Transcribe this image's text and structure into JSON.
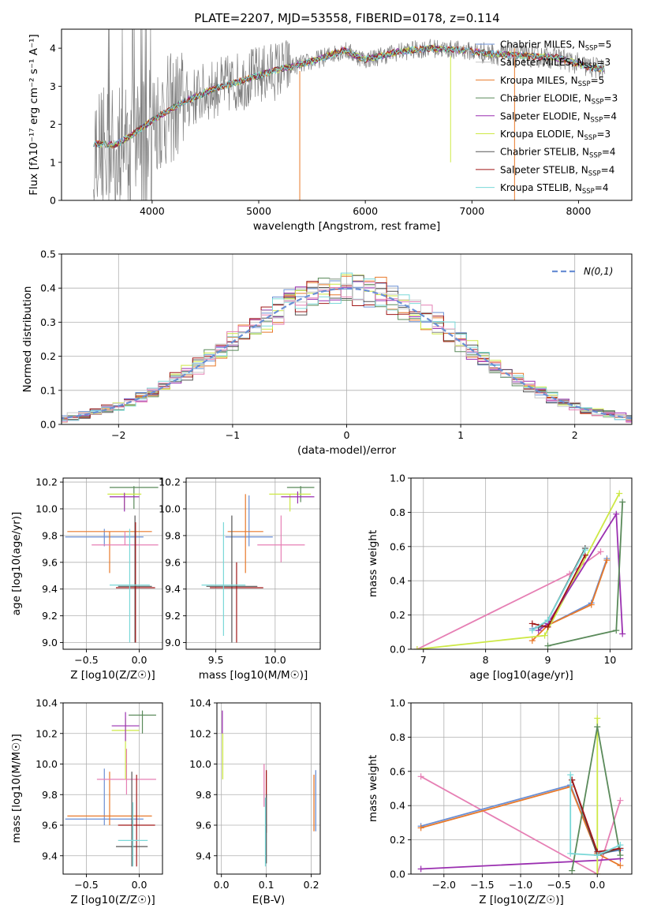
{
  "chart_data": [
    {
      "id": "spectrum",
      "type": "line",
      "title": "PLATE=2207, MJD=53558, FIBERID=0178, z=0.114",
      "xlabel": "wavelength [Angstrom, rest frame]",
      "ylabel": "Flux [fλ10⁻¹⁷ erg cm⁻² s⁻¹ A⁻¹]",
      "xlim": [
        3150,
        8500
      ],
      "ylim": [
        0,
        4.5
      ],
      "xticks": [
        4000,
        5000,
        6000,
        7000,
        8000
      ],
      "yticks": [
        0,
        1,
        2,
        3,
        4
      ],
      "continuum_x": [
        3450,
        3650,
        3800,
        4000,
        4300,
        4600,
        4900,
        5200,
        5500,
        5800,
        6000,
        6300,
        6600,
        6900,
        7200,
        7500,
        7800,
        8100,
        8250
      ],
      "continuum_y": [
        1.5,
        1.45,
        1.7,
        2.1,
        2.6,
        2.95,
        3.2,
        3.45,
        3.65,
        3.95,
        3.7,
        3.9,
        4.0,
        3.95,
        3.85,
        3.8,
        3.75,
        3.5,
        3.45
      ],
      "data_noise": "observed spectrum (grey) with strong sky residuals",
      "legend": [
        {
          "name": "Chabrier MILES, N_SSP=5",
          "color": "#6a8fd4"
        },
        {
          "name": "Salpeter MILES, N_SSP=3",
          "color": "#c8c8c8"
        },
        {
          "name": "Kroupa MILES, N_SSP=5",
          "color": "#e8792a"
        },
        {
          "name": "Chabrier ELODIE, N_SSP=3",
          "color": "#5a8a5a"
        },
        {
          "name": "Salpeter ELODIE, N_SSP=4",
          "color": "#9a2fb0"
        },
        {
          "name": "Kroupa ELODIE, N_SSP=3",
          "color": "#cde845"
        },
        {
          "name": "Chabrier STELIB, N_SSP=4",
          "color": "#555555"
        },
        {
          "name": "Salpeter STELIB, N_SSP=4",
          "color": "#a01818"
        },
        {
          "name": "Kroupa STELIB, N_SSP=4",
          "color": "#7ad8d8"
        }
      ],
      "legend_labels": [
        {
          "pre": "Chabrier MILES, N",
          "sub": "SSP",
          "post": "=5"
        },
        {
          "pre": "Salpeter MILES, N",
          "sub": "SSP",
          "post": "=3"
        },
        {
          "pre": "Kroupa MILES, N",
          "sub": "SSP",
          "post": "=5"
        },
        {
          "pre": "Chabrier ELODIE, N",
          "sub": "SSP",
          "post": "=3"
        },
        {
          "pre": "Salpeter ELODIE, N",
          "sub": "SSP",
          "post": "=4"
        },
        {
          "pre": "Kroupa ELODIE, N",
          "sub": "SSP",
          "post": "=3"
        },
        {
          "pre": "Chabrier STELIB, N",
          "sub": "SSP",
          "post": "=4"
        },
        {
          "pre": "Salpeter STELIB, N",
          "sub": "SSP",
          "post": "=4"
        },
        {
          "pre": "Kroupa STELIB, N",
          "sub": "SSP",
          "post": "=4"
        }
      ]
    },
    {
      "id": "residuals",
      "type": "line",
      "xlabel": "(data-model)/error",
      "ylabel": "Normed distribution",
      "xlim": [
        -2.5,
        2.5
      ],
      "ylim": [
        0,
        0.5
      ],
      "xticks": [
        -2,
        -1,
        0,
        1,
        2
      ],
      "xtick_labels": [
        "−2",
        "−1",
        "0",
        "1",
        "2"
      ],
      "yticks": [
        0.0,
        0.1,
        0.2,
        0.3,
        0.4,
        0.5
      ],
      "ytick_labels": [
        "0.0",
        "0.1",
        "0.2",
        "0.3",
        "0.4",
        "0.5"
      ],
      "grid": true,
      "legend": [
        {
          "name": "N(0,1)",
          "style": "dashed",
          "color": "#6a8fd4"
        }
      ],
      "reference_curve": "gaussian mean 0 sigma 1"
    },
    {
      "id": "age_vs_Z",
      "type": "scatter",
      "xlabel": "Z [log10(Z/Z☉)]",
      "ylabel": "age  [log10(age/yr)]",
      "xlim": [
        -0.72,
        0.22
      ],
      "ylim": [
        8.95,
        10.23
      ],
      "xticks": [
        -0.5,
        0.0
      ],
      "xtick_labels": [
        "−0.5",
        "0.0"
      ],
      "yticks": [
        9.0,
        9.2,
        9.4,
        9.6,
        9.8,
        10.0,
        10.2
      ],
      "ytick_labels": [
        "9.0",
        "9.2",
        "9.4",
        "9.6",
        "9.8",
        "10.0",
        "10.2"
      ],
      "grid": true
    },
    {
      "id": "age_vs_mass",
      "type": "scatter",
      "xlabel": "mass [log10(M/M☉)]",
      "xlim": [
        9.25,
        10.38
      ],
      "ylim": [
        8.95,
        10.23
      ],
      "xticks": [
        9.5,
        10.0
      ],
      "xtick_labels": [
        "9.5",
        "10.0"
      ],
      "yticks": [
        9.0,
        9.2,
        9.4,
        9.6,
        9.8,
        10.0,
        10.2
      ],
      "ytick_labels": [
        "9.0",
        "9.2",
        "9.4",
        "9.6",
        "9.8",
        "10.0",
        "10.2"
      ],
      "grid": true
    },
    {
      "id": "weight_vs_age",
      "type": "line",
      "xlabel": "age  [log10(age/yr)]",
      "ylabel": "mass weight",
      "xlim": [
        6.8,
        10.35
      ],
      "ylim": [
        0,
        1.0
      ],
      "xticks": [
        7,
        8,
        9,
        10
      ],
      "yticks": [
        0.0,
        0.2,
        0.4,
        0.6,
        0.8,
        1.0
      ],
      "ytick_labels": [
        "0.0",
        "0.2",
        "0.4",
        "0.6",
        "0.8",
        "1.0"
      ],
      "grid": true
    },
    {
      "id": "mass_vs_Z",
      "type": "scatter",
      "xlabel": "Z [log10(Z/Z☉)]",
      "ylabel": "mass [log10(M/M☉)]",
      "xlim": [
        -0.72,
        0.22
      ],
      "ylim": [
        9.28,
        10.4
      ],
      "xticks": [
        -0.5,
        0.0
      ],
      "xtick_labels": [
        "−0.5",
        "0.0"
      ],
      "yticks": [
        9.4,
        9.6,
        9.8,
        10.0,
        10.2,
        10.4
      ],
      "ytick_labels": [
        "9.4",
        "9.6",
        "9.8",
        "10.0",
        "10.2",
        "10.4"
      ],
      "grid": true
    },
    {
      "id": "mass_vs_EBV",
      "type": "scatter",
      "xlabel": "E(B-V)",
      "xlim": [
        -0.01,
        0.22
      ],
      "ylim": [
        9.28,
        10.4
      ],
      "xticks": [
        0.0,
        0.1,
        0.2
      ],
      "xtick_labels": [
        "0.0",
        "0.1",
        "0.2"
      ],
      "yticks": [
        9.4,
        9.6,
        9.8,
        10.0,
        10.2,
        10.4
      ],
      "ytick_labels": [
        "9.4",
        "9.6",
        "9.8",
        "10.0",
        "10.2",
        "10.4"
      ],
      "grid": true
    },
    {
      "id": "weight_vs_Z",
      "type": "line",
      "xlabel": "Z [log10(Z/Z☉)]",
      "ylabel": "mass weight",
      "xlim": [
        -2.43,
        0.45
      ],
      "ylim": [
        0,
        1.0
      ],
      "xticks": [
        -2.0,
        -1.5,
        -1.0,
        -0.5,
        0.0
      ],
      "xtick_labels": [
        "−2.0",
        "−1.5",
        "−1.0",
        "−0.5",
        "0.0"
      ],
      "yticks": [
        0.0,
        0.2,
        0.4,
        0.6,
        0.8,
        1.0
      ],
      "ytick_labels": [
        "0.0",
        "0.2",
        "0.4",
        "0.6",
        "0.8",
        "1.0"
      ],
      "grid": true
    }
  ],
  "colors": [
    "#6a8fd4",
    "#c8c8c8",
    "#e8792a",
    "#5a8a5a",
    "#9a2fb0",
    "#cde845",
    "#555555",
    "#a01818",
    "#7ad8d8",
    "#e67fb4"
  ],
  "series": {
    "ageZ": [
      {
        "c": "#6a8fd4",
        "x": -0.7,
        "x2": 0.04,
        "y": 9.79,
        "ylo": 9.72,
        "yhi": 9.85
      },
      {
        "c": "#e8792a",
        "x": -0.68,
        "x2": 0.12,
        "y": 9.83,
        "ylo": 9.52,
        "yhi": 9.83
      },
      {
        "c": "#e67fb4",
        "x": -0.45,
        "x2": 0.18,
        "y": 9.73,
        "ylo": 9.73,
        "yhi": 9.83
      },
      {
        "c": "#5a8a5a",
        "x": -0.28,
        "x2": 0.18,
        "y": 10.16,
        "ylo": 10.0,
        "yhi": 10.17
      },
      {
        "c": "#cde845",
        "x": -0.3,
        "x2": 0.02,
        "y": 10.11,
        "ylo": 10.0,
        "yhi": 10.11
      },
      {
        "c": "#9a2fb0",
        "x": -0.28,
        "x2": 0.0,
        "y": 10.09,
        "ylo": 9.98,
        "yhi": 10.12
      },
      {
        "c": "#555555",
        "x": -0.2,
        "x2": 0.12,
        "y": 9.42,
        "ylo": 9.0,
        "yhi": 9.95
      },
      {
        "c": "#a01818",
        "x": -0.22,
        "x2": 0.15,
        "y": 9.41,
        "ylo": 9.0,
        "yhi": 9.9
      },
      {
        "c": "#7ad8d8",
        "x": -0.28,
        "x2": 0.1,
        "y": 9.43,
        "ylo": 9.0,
        "yhi": 9.85
      }
    ],
    "ageM": [
      {
        "c": "#6a8fd4",
        "x": 9.58,
        "x2": 9.98,
        "y": 9.79,
        "ylo": 9.72,
        "yhi": 10.1
      },
      {
        "c": "#e8792a",
        "x": 9.6,
        "x2": 9.9,
        "y": 9.83,
        "ylo": 9.52,
        "yhi": 10.11
      },
      {
        "c": "#e67fb4",
        "x": 9.85,
        "x2": 10.25,
        "y": 9.73,
        "ylo": 9.6,
        "yhi": 9.95
      },
      {
        "c": "#5a8a5a",
        "x": 10.1,
        "x2": 10.33,
        "y": 10.16,
        "ylo": 10.05,
        "yhi": 10.17
      },
      {
        "c": "#cde845",
        "x": 9.95,
        "x2": 10.3,
        "y": 10.11,
        "ylo": 9.98,
        "yhi": 10.11
      },
      {
        "c": "#9a2fb0",
        "x": 10.05,
        "x2": 10.33,
        "y": 10.09,
        "ylo": 10.04,
        "yhi": 10.13
      },
      {
        "c": "#555555",
        "x": 9.42,
        "x2": 9.85,
        "y": 9.42,
        "ylo": 9.0,
        "yhi": 9.95
      },
      {
        "c": "#a01818",
        "x": 9.45,
        "x2": 9.9,
        "y": 9.41,
        "ylo": 9.0,
        "yhi": 9.6
      },
      {
        "c": "#7ad8d8",
        "x": 9.38,
        "x2": 9.75,
        "y": 9.43,
        "ylo": 9.05,
        "yhi": 9.9
      }
    ],
    "wAge": [
      {
        "c": "#e67fb4",
        "x": [
          6.9,
          9.35,
          9.85
        ],
        "y": [
          0.0,
          0.44,
          0.57
        ]
      },
      {
        "c": "#6a8fd4",
        "x": [
          8.75,
          9.0,
          9.7,
          9.95
        ],
        "y": [
          0.12,
          0.14,
          0.27,
          0.53
        ]
      },
      {
        "c": "#e8792a",
        "x": [
          8.75,
          9.0,
          9.7,
          9.95
        ],
        "y": [
          0.05,
          0.14,
          0.26,
          0.52
        ]
      },
      {
        "c": "#cde845",
        "x": [
          6.9,
          8.95,
          10.15
        ],
        "y": [
          0.0,
          0.08,
          0.91
        ]
      },
      {
        "c": "#9a2fb0",
        "x": [
          8.85,
          9.0,
          10.1,
          10.2
        ],
        "y": [
          0.11,
          0.15,
          0.79,
          0.09
        ]
      },
      {
        "c": "#5a8a5a",
        "x": [
          9.0,
          10.1,
          10.2
        ],
        "y": [
          0.02,
          0.11,
          0.86
        ]
      },
      {
        "c": "#555555",
        "x": [
          8.85,
          9.0,
          9.6
        ],
        "y": [
          0.13,
          0.17,
          0.59
        ]
      },
      {
        "c": "#a01818",
        "x": [
          8.75,
          9.0,
          9.6
        ],
        "y": [
          0.15,
          0.13,
          0.55
        ]
      },
      {
        "c": "#7ad8d8",
        "x": [
          8.75,
          9.0,
          9.6
        ],
        "y": [
          0.11,
          0.17,
          0.58
        ]
      }
    ],
    "massZ": [
      {
        "c": "#6a8fd4",
        "x": -0.7,
        "x2": 0.04,
        "y": 9.64,
        "ylo": 9.6,
        "yhi": 9.97
      },
      {
        "c": "#e8792a",
        "x": -0.68,
        "x2": 0.12,
        "y": 9.66,
        "ylo": 9.6,
        "yhi": 9.95
      },
      {
        "c": "#e67fb4",
        "x": -0.4,
        "x2": 0.16,
        "y": 9.9,
        "ylo": 9.8,
        "yhi": 10.1
      },
      {
        "c": "#5a8a5a",
        "x": -0.1,
        "x2": 0.16,
        "y": 10.32,
        "ylo": 10.2,
        "yhi": 10.35
      },
      {
        "c": "#cde845",
        "x": -0.26,
        "x2": 0.0,
        "y": 10.22,
        "ylo": 9.9,
        "yhi": 10.3
      },
      {
        "c": "#9a2fb0",
        "x": -0.26,
        "x2": 0.0,
        "y": 10.25,
        "ylo": 10.15,
        "yhi": 10.34
      },
      {
        "c": "#555555",
        "x": -0.22,
        "x2": 0.08,
        "y": 9.46,
        "ylo": 9.33,
        "yhi": 9.95
      },
      {
        "c": "#a01818",
        "x": -0.2,
        "x2": 0.15,
        "y": 9.6,
        "ylo": 9.33,
        "yhi": 9.93
      },
      {
        "c": "#7ad8d8",
        "x": -0.2,
        "x2": 0.08,
        "y": 9.5,
        "ylo": 9.33,
        "yhi": 9.75
      }
    ],
    "massE": [
      {
        "c": "#9a2fb0",
        "x": 0.002,
        "ylo": 10.2,
        "yhi": 10.35
      },
      {
        "c": "#cde845",
        "x": 0.003,
        "ylo": 9.9,
        "yhi": 10.2
      },
      {
        "c": "#e67fb4",
        "x": 0.095,
        "ylo": 9.72,
        "yhi": 10.0
      },
      {
        "c": "#a01818",
        "x": 0.1,
        "ylo": 9.55,
        "yhi": 9.96
      },
      {
        "c": "#555555",
        "x": 0.1,
        "ylo": 9.35,
        "yhi": 9.8
      },
      {
        "c": "#7ad8d8",
        "x": 0.098,
        "ylo": 9.33,
        "yhi": 9.78
      },
      {
        "c": "#6a8fd4",
        "x": 0.21,
        "ylo": 9.56,
        "yhi": 9.96
      },
      {
        "c": "#e8792a",
        "x": 0.206,
        "ylo": 9.56,
        "yhi": 9.93
      }
    ],
    "wZ": [
      {
        "c": "#e67fb4",
        "x": [
          -2.3,
          0.0,
          0.3
        ],
        "y": [
          0.57,
          0.0,
          0.43
        ]
      },
      {
        "c": "#6a8fd4",
        "x": [
          -2.3,
          -0.35,
          0.0,
          0.3
        ],
        "y": [
          0.28,
          0.52,
          0.12,
          0.14
        ]
      },
      {
        "c": "#e8792a",
        "x": [
          -2.3,
          -0.35,
          0.0,
          0.3
        ],
        "y": [
          0.27,
          0.51,
          0.12,
          0.05
        ]
      },
      {
        "c": "#9a2fb0",
        "x": [
          -2.3,
          0.0,
          0.3
        ],
        "y": [
          0.03,
          0.08,
          0.09
        ]
      },
      {
        "c": "#cde845",
        "x": [
          0.0,
          0.0
        ],
        "y": [
          0.0,
          0.91
        ]
      },
      {
        "c": "#5a8a5a",
        "x": [
          -0.33,
          0.0,
          0.3
        ],
        "y": [
          0.02,
          0.86,
          0.11
        ]
      },
      {
        "c": "#555555",
        "x": [
          -0.33,
          0.0,
          0.3
        ],
        "y": [
          0.55,
          0.11,
          0.15
        ]
      },
      {
        "c": "#a01818",
        "x": [
          -0.33,
          0.0,
          0.3
        ],
        "y": [
          0.55,
          0.13,
          0.15
        ]
      },
      {
        "c": "#7ad8d8",
        "x": [
          -0.35,
          -0.35,
          0.0,
          0.3
        ],
        "y": [
          0.58,
          0.12,
          0.11,
          0.17
        ]
      }
    ]
  }
}
